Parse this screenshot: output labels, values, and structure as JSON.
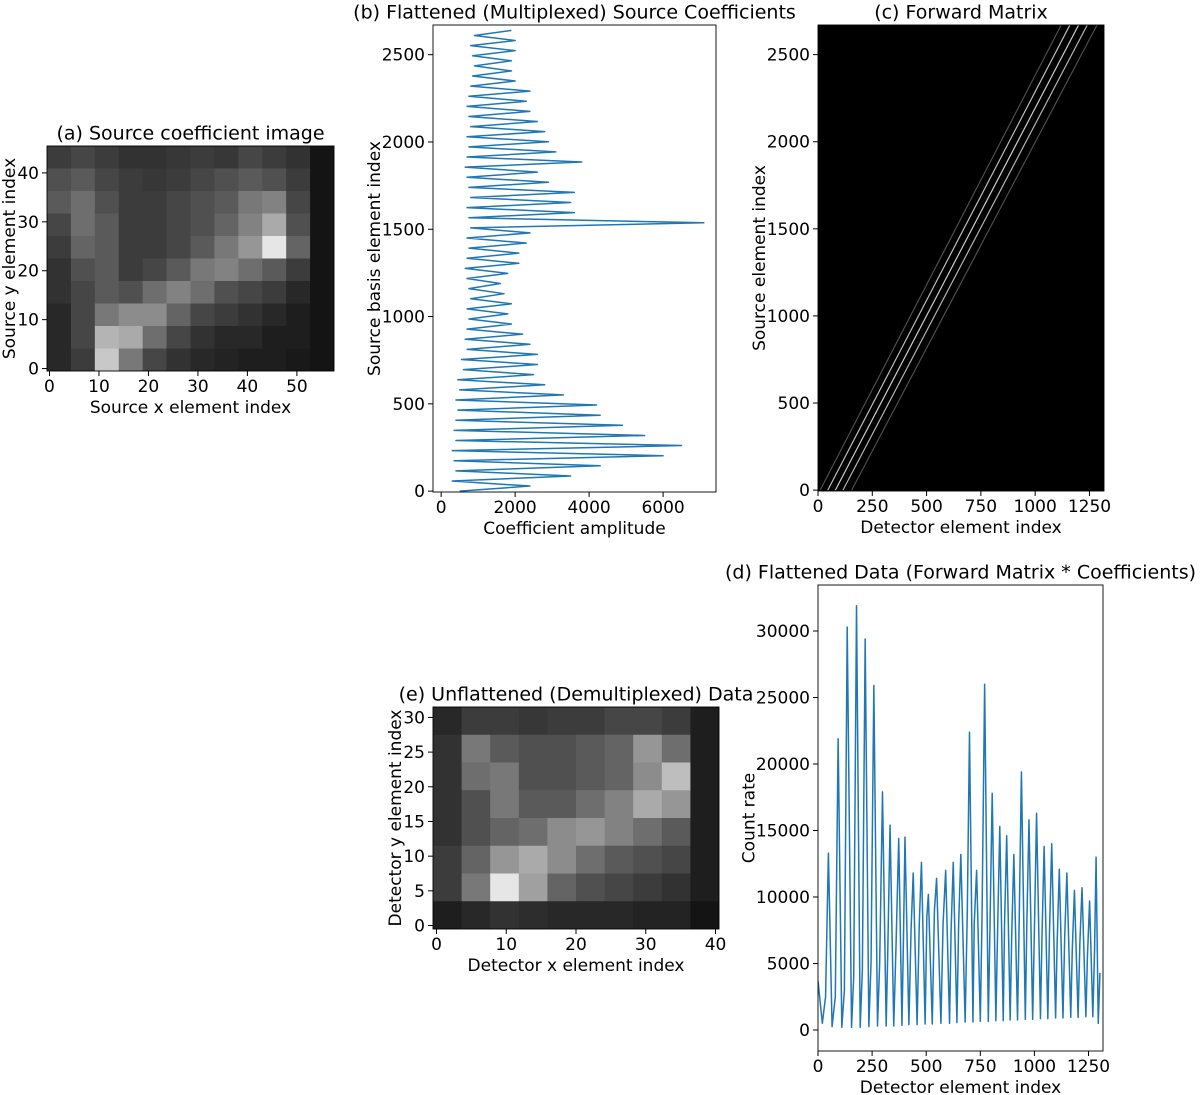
{
  "chart_data": [
    {
      "type": "heatmap",
      "title": "(a) Source coefficient image",
      "xlabel": "Source x element index",
      "ylabel": "Source y element index",
      "xlim": [
        -0.5,
        57.5
      ],
      "ylim": [
        -0.5,
        45.5
      ],
      "xticks": [
        0,
        10,
        20,
        30,
        40,
        50
      ],
      "yticks": [
        0,
        10,
        20,
        30,
        40
      ],
      "colormap": "gray",
      "zlim": [
        0,
        255
      ],
      "z": [
        [
          60,
          70,
          60,
          50,
          50,
          55,
          60,
          55,
          70,
          60,
          50,
          20
        ],
        [
          80,
          90,
          70,
          60,
          55,
          60,
          70,
          80,
          90,
          80,
          60,
          20
        ],
        [
          90,
          110,
          80,
          60,
          60,
          70,
          80,
          90,
          120,
          130,
          70,
          20
        ],
        [
          70,
          110,
          90,
          60,
          60,
          70,
          80,
          100,
          130,
          170,
          80,
          20
        ],
        [
          60,
          100,
          90,
          60,
          60,
          70,
          90,
          120,
          150,
          230,
          100,
          20
        ],
        [
          50,
          80,
          90,
          60,
          70,
          90,
          120,
          130,
          110,
          90,
          60,
          20
        ],
        [
          50,
          70,
          90,
          80,
          110,
          130,
          110,
          80,
          70,
          60,
          40,
          20
        ],
        [
          40,
          70,
          120,
          140,
          140,
          100,
          70,
          60,
          50,
          40,
          30,
          20
        ],
        [
          40,
          70,
          180,
          170,
          110,
          70,
          50,
          40,
          40,
          30,
          30,
          20
        ],
        [
          40,
          60,
          200,
          120,
          70,
          50,
          40,
          35,
          30,
          30,
          25,
          20
        ]
      ]
    },
    {
      "type": "line",
      "orientation": "horizontal",
      "title": "(b) Flattened (Multiplexed) Source Coefficients",
      "xlabel": "Coefficient amplitude",
      "ylabel": "Source basis element index",
      "xlim": [
        -220,
        7430
      ],
      "ylim": [
        -5,
        2670
      ],
      "xticks": [
        0,
        2000,
        4000,
        6000
      ],
      "yticks": [
        0,
        500,
        1000,
        1500,
        2000,
        2500
      ],
      "color": "#1f77b4",
      "x": [
        0,
        29,
        58,
        87,
        116,
        145,
        174,
        203,
        232,
        261,
        290,
        319,
        348,
        377,
        406,
        435,
        464,
        493,
        522,
        551,
        580,
        609,
        638,
        667,
        696,
        725,
        754,
        783,
        812,
        841,
        870,
        899,
        928,
        957,
        986,
        1015,
        1044,
        1073,
        1102,
        1131,
        1160,
        1189,
        1218,
        1247,
        1276,
        1305,
        1334,
        1363,
        1392,
        1421,
        1450,
        1479,
        1508,
        1537,
        1566,
        1595,
        1624,
        1653,
        1682,
        1711,
        1740,
        1769,
        1798,
        1827,
        1856,
        1885,
        1914,
        1943,
        1972,
        2001,
        2030,
        2059,
        2088,
        2117,
        2146,
        2175,
        2204,
        2233,
        2262,
        2291,
        2320,
        2349,
        2378,
        2407,
        2436,
        2465,
        2494,
        2523,
        2552,
        2581,
        2610,
        2639
      ],
      "values": [
        500,
        2400,
        300,
        3500,
        400,
        4300,
        350,
        6000,
        300,
        6500,
        400,
        5500,
        350,
        4900,
        400,
        4300,
        450,
        4200,
        400,
        3300,
        500,
        2800,
        450,
        2500,
        600,
        2600,
        550,
        2600,
        700,
        2400,
        650,
        2200,
        700,
        1900,
        750,
        1800,
        700,
        1900,
        800,
        1700,
        750,
        1600,
        700,
        1800,
        650,
        2100,
        700,
        2100,
        750,
        2300,
        700,
        2400,
        800,
        7100,
        750,
        3600,
        700,
        3500,
        800,
        3600,
        750,
        2900,
        700,
        2600,
        650,
        3800,
        700,
        3100,
        750,
        2900,
        700,
        2800,
        800,
        2600,
        750,
        2400,
        700,
        2300,
        750,
        2400,
        800,
        2000,
        850,
        1900,
        900,
        1900,
        850,
        2000,
        800,
        2000,
        900,
        1900
      ]
    },
    {
      "type": "matrix",
      "title": "(c) Forward Matrix",
      "xlabel": "Detector element index",
      "ylabel": "Source element index",
      "xlim": [
        0,
        1317
      ],
      "ylim": [
        -5,
        2670
      ],
      "xticks": [
        0,
        250,
        500,
        750,
        1000,
        1250
      ],
      "yticks": [
        0,
        500,
        1000,
        1500,
        2000,
        2500
      ],
      "background": "#000000",
      "diagonals": [
        {
          "x": [
            10,
            1120
          ],
          "y": [
            0,
            2670
          ],
          "brightness": 0.3
        },
        {
          "x": [
            45,
            1160
          ],
          "y": [
            0,
            2670
          ],
          "brightness": 0.75
        },
        {
          "x": [
            80,
            1200
          ],
          "y": [
            0,
            2670
          ],
          "brightness": 0.8
        },
        {
          "x": [
            115,
            1240
          ],
          "y": [
            0,
            2670
          ],
          "brightness": 0.7
        },
        {
          "x": [
            155,
            1285
          ],
          "y": [
            0,
            2670
          ],
          "brightness": 0.3
        }
      ]
    },
    {
      "type": "line",
      "orientation": "vertical",
      "title": "(d) Flattened Data (Forward Matrix * Coefficients)",
      "xlabel": "Detector element index",
      "ylabel": "Count rate",
      "xlim": [
        0,
        1317
      ],
      "ylim": [
        -1580,
        33460
      ],
      "xticks": [
        0,
        250,
        500,
        750,
        1000,
        1250
      ],
      "yticks": [
        0,
        5000,
        10000,
        15000,
        20000,
        25000,
        30000
      ],
      "color": "#1f77b4",
      "x": [
        0,
        20,
        35,
        48,
        65,
        80,
        93,
        110,
        122,
        135,
        155,
        165,
        178,
        195,
        205,
        218,
        235,
        245,
        258,
        275,
        285,
        298,
        315,
        322,
        333,
        350,
        360,
        373,
        388,
        395,
        402,
        420,
        430,
        440,
        458,
        468,
        478,
        495,
        503,
        510,
        528,
        538,
        548,
        568,
        578,
        590,
        608,
        615,
        625,
        642,
        650,
        660,
        680,
        690,
        700,
        716,
        722,
        733,
        750,
        758,
        770,
        787,
        795,
        805,
        822,
        830,
        840,
        856,
        862,
        872,
        888,
        895,
        905,
        922,
        930,
        940,
        958,
        965,
        975,
        992,
        1000,
        1010,
        1028,
        1035,
        1045,
        1062,
        1070,
        1080,
        1098,
        1105,
        1115,
        1132,
        1140,
        1150,
        1168,
        1175,
        1185,
        1202,
        1210,
        1220,
        1238,
        1245,
        1255,
        1270,
        1278,
        1285,
        1295,
        1303
      ],
      "values": [
        3700,
        500,
        2500,
        13300,
        250,
        2500,
        21900,
        200,
        3000,
        30300,
        200,
        4000,
        31900,
        200,
        4500,
        29400,
        250,
        5000,
        25900,
        300,
        5000,
        17900,
        300,
        5500,
        15400,
        300,
        6000,
        14400,
        350,
        7000,
        14500,
        400,
        7500,
        11800,
        400,
        8000,
        12600,
        450,
        8500,
        10200,
        450,
        9000,
        11400,
        500,
        8000,
        12000,
        500,
        7500,
        12600,
        550,
        8000,
        13200,
        600,
        9000,
        22400,
        600,
        8000,
        12000,
        650,
        8500,
        26000,
        650,
        8000,
        17800,
        700,
        7500,
        15300,
        700,
        8000,
        14600,
        750,
        7000,
        13200,
        750,
        8500,
        19400,
        800,
        8000,
        15800,
        800,
        7500,
        16300,
        850,
        7000,
        13800,
        850,
        7500,
        14000,
        900,
        6500,
        12100,
        900,
        7000,
        11800,
        950,
        6000,
        10500,
        950,
        6500,
        10700,
        1000,
        5500,
        9700,
        1000,
        6000,
        13000,
        500,
        4300
      ]
    },
    {
      "type": "heatmap",
      "title": "(e) Unflattened (Demultiplexed) Data",
      "xlabel": "Detector x element index",
      "ylabel": "Detector y element index",
      "xlim": [
        -0.5,
        40.5
      ],
      "ylim": [
        -0.5,
        31.5
      ],
      "xticks": [
        0,
        10,
        20,
        30,
        40
      ],
      "yticks": [
        0,
        5,
        10,
        15,
        20,
        25,
        30
      ],
      "colormap": "gray",
      "zlim": [
        0,
        255
      ],
      "z": [
        [
          40,
          60,
          60,
          55,
          60,
          60,
          70,
          70,
          60,
          30
        ],
        [
          50,
          120,
          90,
          80,
          80,
          90,
          100,
          150,
          110,
          30
        ],
        [
          50,
          110,
          120,
          80,
          80,
          90,
          100,
          140,
          190,
          30
        ],
        [
          50,
          80,
          120,
          90,
          90,
          110,
          130,
          170,
          150,
          30
        ],
        [
          50,
          80,
          100,
          110,
          140,
          150,
          130,
          110,
          90,
          30
        ],
        [
          60,
          100,
          150,
          170,
          140,
          110,
          90,
          80,
          70,
          30
        ],
        [
          60,
          120,
          230,
          160,
          100,
          80,
          70,
          60,
          50,
          30
        ],
        [
          30,
          40,
          50,
          45,
          40,
          40,
          40,
          35,
          35,
          20
        ]
      ]
    }
  ]
}
